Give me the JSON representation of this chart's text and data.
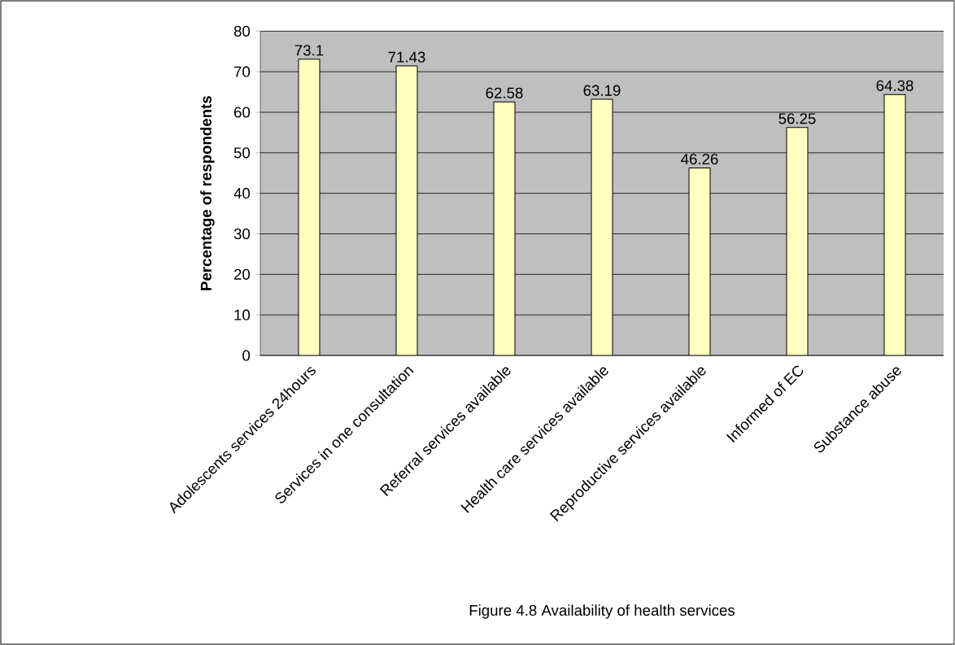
{
  "chart_data": {
    "type": "bar",
    "title": "Figure 4.8 Availability of health services",
    "ylabel": "Percentage of respondents",
    "categories": [
      "Adolescents services 24hours",
      "Services in one consultation",
      "Referral services available",
      "Health care services available",
      "Reproductive services available",
      "Informed of EC",
      "Substance abuse"
    ],
    "values": [
      73.1,
      71.43,
      62.58,
      63.19,
      46.26,
      56.25,
      64.38
    ],
    "color": "#ffffc0",
    "data_labels": true,
    "grid": "y",
    "ylim": [
      0,
      80
    ],
    "yticks": [
      0,
      10,
      20,
      30,
      40,
      50,
      60,
      70,
      80
    ]
  }
}
